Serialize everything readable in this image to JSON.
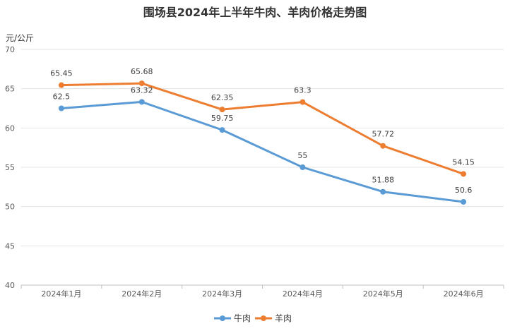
{
  "chart_data": {
    "type": "line",
    "title": "围场县2024年上半年牛肉、羊肉价格走势图",
    "ylabel": "元/公斤",
    "categories": [
      "2024年1月",
      "2024年2月",
      "2024年3月",
      "2024年4月",
      "2024年5月",
      "2024年6月"
    ],
    "ylim": [
      40,
      70
    ],
    "yticks": [
      40,
      45,
      50,
      55,
      60,
      65,
      70
    ],
    "grid": true,
    "legend": "bottom",
    "series": [
      {
        "name": "牛肉",
        "color": "#5b9bd5",
        "values": [
          62.5,
          63.32,
          59.75,
          55,
          51.88,
          50.6
        ]
      },
      {
        "name": "羊肉",
        "color": "#ed7d31",
        "values": [
          65.45,
          65.68,
          62.35,
          63.3,
          57.72,
          54.15
        ]
      }
    ]
  }
}
